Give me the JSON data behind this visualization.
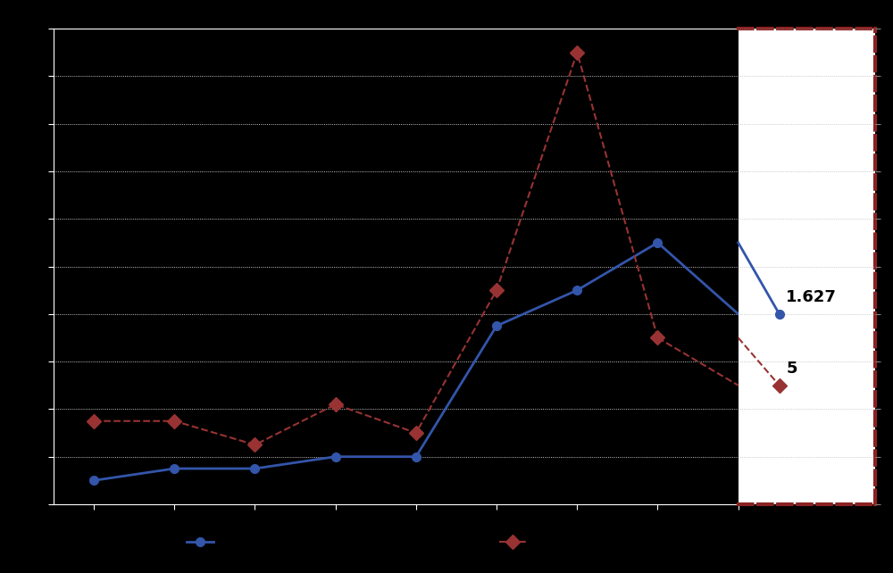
{
  "x": [
    1,
    2,
    3,
    4,
    5,
    6,
    7,
    8,
    9
  ],
  "blue_y": [
    1.0,
    1.5,
    1.5,
    2.0,
    2.0,
    7.5,
    9.0,
    11.0,
    8.0
  ],
  "red_y": [
    3.5,
    3.5,
    2.5,
    4.2,
    3.0,
    9.0,
    19.0,
    7.0,
    5.0
  ],
  "blue_color": "#3355aa",
  "red_color": "#993333",
  "ylim": [
    0,
    20
  ],
  "yticks": [
    0,
    2,
    4,
    6,
    8,
    10,
    12,
    14,
    16,
    18,
    20
  ],
  "annotation_blue": "1.627",
  "annotation_red": "5",
  "bg_color": "#000000",
  "plot_area_color": "#000000",
  "grid_color": "#ffffff",
  "box_border_color": "#8B2222"
}
